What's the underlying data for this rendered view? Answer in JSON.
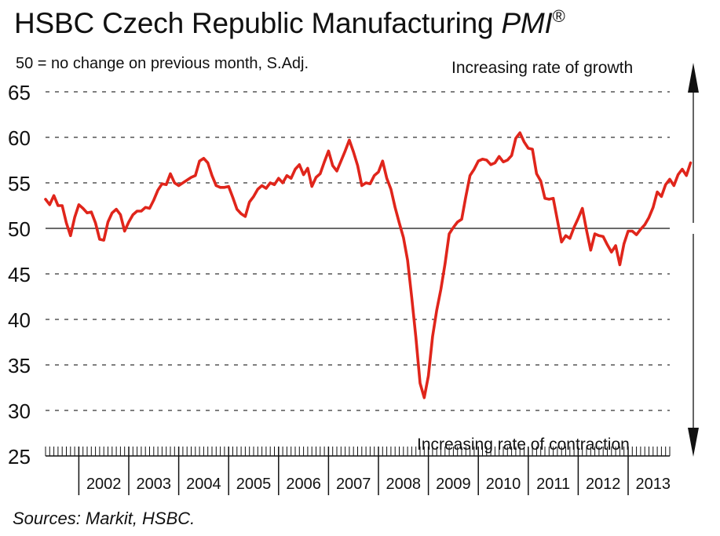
{
  "header": {
    "title": "HSBC Czech Republic Manufacturing",
    "title_pmi": "PMI",
    "title_reg": "®",
    "subtitle": "50 = no change on previous month, S.Adj."
  },
  "annotations": {
    "growth": "Increasing rate of growth",
    "contraction": "Increasing rate of contraction"
  },
  "footer": {
    "source": "Sources: Markit, HSBC."
  },
  "colors": {
    "line": "#e0251b",
    "axis": "#111111",
    "grid": "#333333"
  },
  "chart_data": {
    "type": "line",
    "title": "HSBC Czech Republic Manufacturing PMI",
    "ylim": [
      25,
      65
    ],
    "yticks": [
      65,
      60,
      55,
      50,
      45,
      40,
      35,
      30,
      25
    ],
    "grid": "dashed horizontal",
    "reference_line": 50,
    "x_tick_labels": [
      "2002",
      "2003",
      "2004",
      "2005",
      "2006",
      "2007",
      "2008",
      "2009",
      "2010",
      "2011",
      "2012",
      "2013"
    ],
    "x_start": "2001-05",
    "x_end": "2013-11",
    "series": [
      {
        "values": [
          53.2,
          52.6,
          53.6,
          52.5,
          52.5,
          50.6,
          49.2,
          51.2,
          52.6,
          52.2,
          51.7,
          51.8,
          50.6,
          48.8,
          48.7,
          50.7,
          51.7,
          52.1,
          51.5,
          49.7,
          50.7,
          51.5,
          51.9,
          51.9,
          52.3,
          52.2,
          53.1,
          54.2,
          54.9,
          54.8,
          56.0,
          55.0,
          54.7,
          55.0,
          55.3,
          55.6,
          55.8,
          57.4,
          57.7,
          57.2,
          55.8,
          54.7,
          54.5,
          54.5,
          54.6,
          53.4,
          52.1,
          51.6,
          51.3,
          52.9,
          53.5,
          54.3,
          54.7,
          54.4,
          55.0,
          54.8,
          55.5,
          55.0,
          55.8,
          55.5,
          56.5,
          57.0,
          55.9,
          56.6,
          54.6,
          55.6,
          56.0,
          57.3,
          58.5,
          56.9,
          56.3,
          57.4,
          58.5,
          59.7,
          58.4,
          56.9,
          54.7,
          55.0,
          54.9,
          55.8,
          56.2,
          57.4,
          55.5,
          54.3,
          52.3,
          50.6,
          49.0,
          46.5,
          42.4,
          38.0,
          33.0,
          31.4,
          33.8,
          38.1,
          41.0,
          43.3,
          46.1,
          49.4,
          50.1,
          50.7,
          51.0,
          53.5,
          55.8,
          56.5,
          57.4,
          57.6,
          57.5,
          57.0,
          57.2,
          57.9,
          57.3,
          57.5,
          58.0,
          59.9,
          60.5,
          59.5,
          58.8,
          58.7,
          56.0,
          55.2,
          53.3,
          53.2,
          53.3,
          50.9,
          48.5,
          49.2,
          48.9,
          50.1,
          51.1,
          52.2,
          49.8,
          47.6,
          49.4,
          49.2,
          49.1,
          48.2,
          47.4,
          48.1,
          46.0,
          48.3,
          49.7,
          49.7,
          49.3,
          49.9,
          50.4,
          51.2,
          52.3,
          54.0,
          53.5,
          54.8,
          55.4,
          54.7,
          55.9,
          56.5,
          55.8,
          57.2
        ]
      }
    ]
  }
}
